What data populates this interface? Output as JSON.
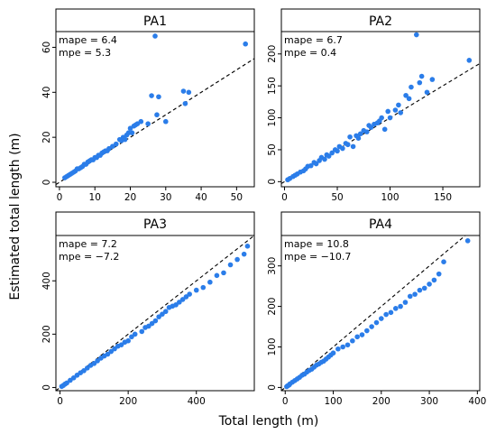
{
  "xlabel": "Total length (m)",
  "ylabel": "Estimated total length (m)",
  "chart_data": [
    {
      "type": "scatter",
      "title": "PA1",
      "stats": [
        "mape = 6.4",
        "mpe = 5.3"
      ],
      "xlim": [
        -1,
        55
      ],
      "ylim": [
        -2,
        67
      ],
      "xticks": [
        0,
        10,
        20,
        30,
        40,
        50
      ],
      "yticks": [
        0,
        20,
        40,
        60
      ],
      "reference_line": "y = x (dashed)",
      "point_color": "#2b7de9",
      "x": [
        1.5,
        2,
        2.5,
        3,
        3.5,
        4,
        4.5,
        5,
        5.5,
        6,
        6.5,
        7,
        7.5,
        8,
        8.5,
        9,
        9.5,
        10,
        10.5,
        11,
        11.5,
        12,
        12.5,
        13,
        13.5,
        14,
        15,
        16,
        17,
        17.5,
        18,
        18.5,
        19,
        19.5,
        20,
        20.5,
        21,
        21.5,
        22,
        23,
        25,
        26,
        27,
        27.5,
        28,
        30,
        35,
        35.5,
        36.5,
        52.5
      ],
      "y": [
        2,
        2.5,
        3,
        3.5,
        4,
        4.5,
        5,
        6,
        6,
        6.5,
        7,
        8,
        8,
        9,
        9.5,
        10,
        10,
        11,
        11,
        12,
        12,
        13,
        13.5,
        14,
        14,
        15,
        16,
        17,
        19,
        18.5,
        20,
        19,
        21,
        22,
        24,
        22,
        25,
        25.5,
        26,
        27,
        26,
        38.5,
        65,
        30,
        38,
        27,
        40.5,
        35,
        40,
        61.5
      ]
    },
    {
      "type": "scatter",
      "title": "PA2",
      "stats": [
        "mape = 6.7",
        "mpe = 0.4"
      ],
      "xlim": [
        -3,
        185
      ],
      "ylim": [
        -8,
        235
      ],
      "xticks": [
        0,
        50,
        100,
        150
      ],
      "yticks": [
        0,
        50,
        100,
        150,
        200
      ],
      "reference_line": "y = x (dashed)",
      "point_color": "#2b7de9",
      "x": [
        3,
        5,
        8,
        10,
        12,
        15,
        18,
        20,
        22,
        25,
        28,
        30,
        33,
        35,
        38,
        40,
        42,
        45,
        48,
        50,
        52,
        55,
        58,
        60,
        62,
        65,
        68,
        70,
        72,
        75,
        78,
        80,
        82,
        85,
        88,
        90,
        92,
        95,
        98,
        100,
        105,
        108,
        110,
        115,
        118,
        120,
        125,
        128,
        130,
        135,
        140,
        175
      ],
      "y": [
        3,
        5,
        8,
        10,
        12,
        15,
        17,
        20,
        24,
        25,
        30,
        28,
        33,
        38,
        35,
        42,
        40,
        45,
        50,
        48,
        55,
        52,
        60,
        58,
        70,
        55,
        72,
        68,
        75,
        80,
        78,
        88,
        85,
        90,
        92,
        95,
        100,
        82,
        110,
        100,
        112,
        120,
        108,
        135,
        130,
        148,
        230,
        155,
        165,
        140,
        160,
        190
      ]
    },
    {
      "type": "scatter",
      "title": "PA3",
      "stats": [
        "mape = 7.2",
        "mpe = −7.2"
      ],
      "xlim": [
        -12,
        570
      ],
      "ylim": [
        -12,
        570
      ],
      "xticks": [
        0,
        200,
        400
      ],
      "yticks": [
        0,
        200,
        400
      ],
      "reference_line": "y = x (dashed)",
      "point_color": "#2b7de9",
      "x": [
        5,
        10,
        15,
        20,
        30,
        40,
        50,
        60,
        70,
        80,
        90,
        100,
        110,
        120,
        130,
        140,
        150,
        160,
        170,
        180,
        190,
        200,
        210,
        220,
        240,
        250,
        260,
        270,
        280,
        290,
        300,
        310,
        320,
        330,
        340,
        350,
        360,
        370,
        380,
        400,
        420,
        440,
        460,
        480,
        500,
        520,
        540,
        550
      ],
      "y": [
        4,
        8,
        13,
        17,
        27,
        36,
        46,
        55,
        63,
        73,
        83,
        90,
        100,
        110,
        118,
        125,
        135,
        145,
        155,
        160,
        170,
        175,
        190,
        200,
        210,
        225,
        230,
        240,
        250,
        265,
        275,
        285,
        300,
        305,
        310,
        320,
        330,
        340,
        350,
        365,
        375,
        395,
        420,
        430,
        460,
        480,
        500,
        530
      ]
    },
    {
      "type": "scatter",
      "title": "PA4",
      "stats": [
        "mape = 10.8",
        "mpe = −10.7"
      ],
      "xlim": [
        -8,
        405
      ],
      "ylim": [
        -8,
        375
      ],
      "xticks": [
        0,
        100,
        200,
        300,
        400
      ],
      "yticks": [
        0,
        100,
        200,
        300
      ],
      "reference_line": "y = x (dashed)",
      "point_color": "#2b7de9",
      "x": [
        3,
        5,
        8,
        10,
        15,
        20,
        25,
        30,
        35,
        40,
        45,
        50,
        55,
        60,
        65,
        70,
        75,
        80,
        85,
        90,
        95,
        100,
        110,
        120,
        130,
        140,
        150,
        160,
        170,
        180,
        190,
        200,
        210,
        220,
        230,
        240,
        250,
        260,
        270,
        280,
        290,
        300,
        310,
        320,
        330,
        380
      ],
      "y": [
        2,
        4,
        6,
        9,
        13,
        17,
        21,
        25,
        30,
        33,
        38,
        42,
        45,
        50,
        55,
        58,
        62,
        65,
        70,
        75,
        80,
        85,
        95,
        100,
        105,
        115,
        125,
        130,
        140,
        150,
        160,
        170,
        180,
        185,
        195,
        200,
        210,
        225,
        230,
        240,
        245,
        255,
        265,
        280,
        310,
        362
      ]
    }
  ]
}
